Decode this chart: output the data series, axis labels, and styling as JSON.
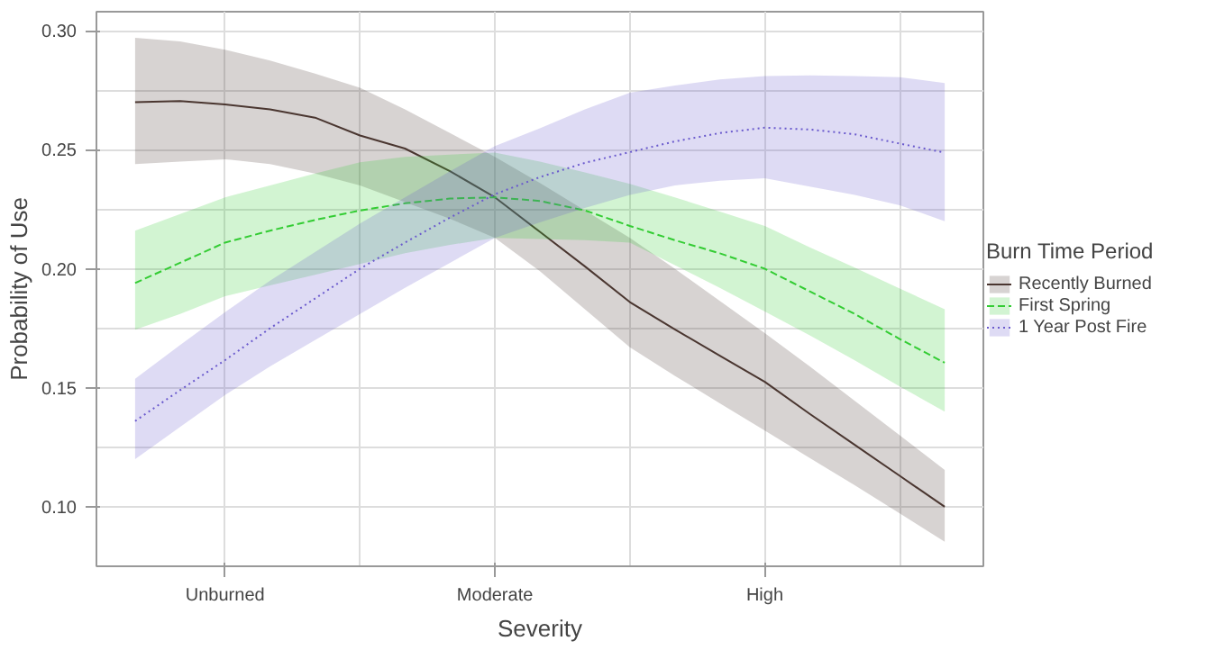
{
  "chart_data": {
    "type": "line",
    "xlabel": "Severity",
    "ylabel": "Probability of Use",
    "legend_title": "Burn Time Period",
    "legend": "right",
    "grid": true,
    "categories": [
      null,
      null,
      "Unburned",
      null,
      null,
      null,
      null,
      null,
      "Moderate",
      null,
      null,
      null,
      null,
      null,
      "High",
      null,
      null,
      null,
      null
    ],
    "ylim": [
      0.075,
      0.308
    ],
    "yticks": [
      {
        "value": 0.1,
        "label": "0.10"
      },
      {
        "value": 0.125,
        "label": null
      },
      {
        "value": 0.15,
        "label": "0.15"
      },
      {
        "value": 0.175,
        "label": null
      },
      {
        "value": 0.2,
        "label": "0.20"
      },
      {
        "value": 0.225,
        "label": null
      },
      {
        "value": 0.25,
        "label": "0.25"
      },
      {
        "value": 0.275,
        "label": null
      },
      {
        "value": 0.3,
        "label": "0.30"
      }
    ],
    "series": [
      {
        "name": "Recently Burned",
        "color": "#4a3630",
        "line_style": "solid",
        "values": [
          0.27,
          0.2705,
          0.269,
          0.267,
          0.2635,
          0.256,
          0.2505,
          0.241,
          0.23,
          0.2155,
          0.201,
          0.186,
          0.1745,
          0.1635,
          0.1525,
          0.139,
          0.126,
          0.113,
          0.1
        ],
        "lower": [
          0.244,
          0.245,
          0.246,
          0.244,
          0.24,
          0.235,
          0.228,
          0.221,
          0.213,
          0.199,
          0.183,
          0.167,
          0.155,
          0.1435,
          0.132,
          0.1205,
          0.109,
          0.0972,
          0.0853
        ],
        "upper": [
          0.297,
          0.2955,
          0.292,
          0.2875,
          0.282,
          0.276,
          0.267,
          0.257,
          0.247,
          0.236,
          0.2245,
          0.213,
          0.2,
          0.1865,
          0.173,
          0.159,
          0.1445,
          0.13,
          0.1155
        ]
      },
      {
        "name": "First Spring",
        "color": "#33cc33",
        "line_style": "dashed",
        "values": [
          0.194,
          0.2025,
          0.211,
          0.216,
          0.2205,
          0.2245,
          0.2275,
          0.2295,
          0.23,
          0.2285,
          0.2245,
          0.218,
          0.212,
          0.2065,
          0.2,
          0.1905,
          0.181,
          0.1705,
          0.1605
        ],
        "lower": [
          0.1744,
          0.181,
          0.1885,
          0.193,
          0.1975,
          0.202,
          0.2065,
          0.21,
          0.213,
          0.2125,
          0.212,
          0.211,
          0.2015,
          0.192,
          0.182,
          0.172,
          0.1615,
          0.1506,
          0.14
        ],
        "upper": [
          0.216,
          0.223,
          0.23,
          0.235,
          0.24,
          0.2447,
          0.247,
          0.248,
          0.2488,
          0.245,
          0.2405,
          0.2357,
          0.23,
          0.224,
          0.218,
          0.209,
          0.2005,
          0.1917,
          0.183
        ]
      },
      {
        "name": "1 Year Post Fire",
        "color": "#6a5acd",
        "line_style": "dotted",
        "values": [
          0.136,
          0.149,
          0.1616,
          0.175,
          0.1875,
          0.2,
          0.211,
          0.2215,
          0.2313,
          0.2385,
          0.2445,
          0.249,
          0.2535,
          0.257,
          0.2593,
          0.2585,
          0.2565,
          0.2526,
          0.2488
        ],
        "lower": [
          0.12,
          0.1335,
          0.147,
          0.159,
          0.17,
          0.181,
          0.192,
          0.2025,
          0.213,
          0.2195,
          0.2255,
          0.231,
          0.235,
          0.237,
          0.238,
          0.2345,
          0.231,
          0.2267,
          0.22
        ],
        "upper": [
          0.1538,
          0.168,
          0.1818,
          0.195,
          0.207,
          0.219,
          0.23,
          0.241,
          0.2515,
          0.259,
          0.267,
          0.274,
          0.277,
          0.2795,
          0.281,
          0.2812,
          0.281,
          0.2805,
          0.278
        ]
      }
    ]
  }
}
